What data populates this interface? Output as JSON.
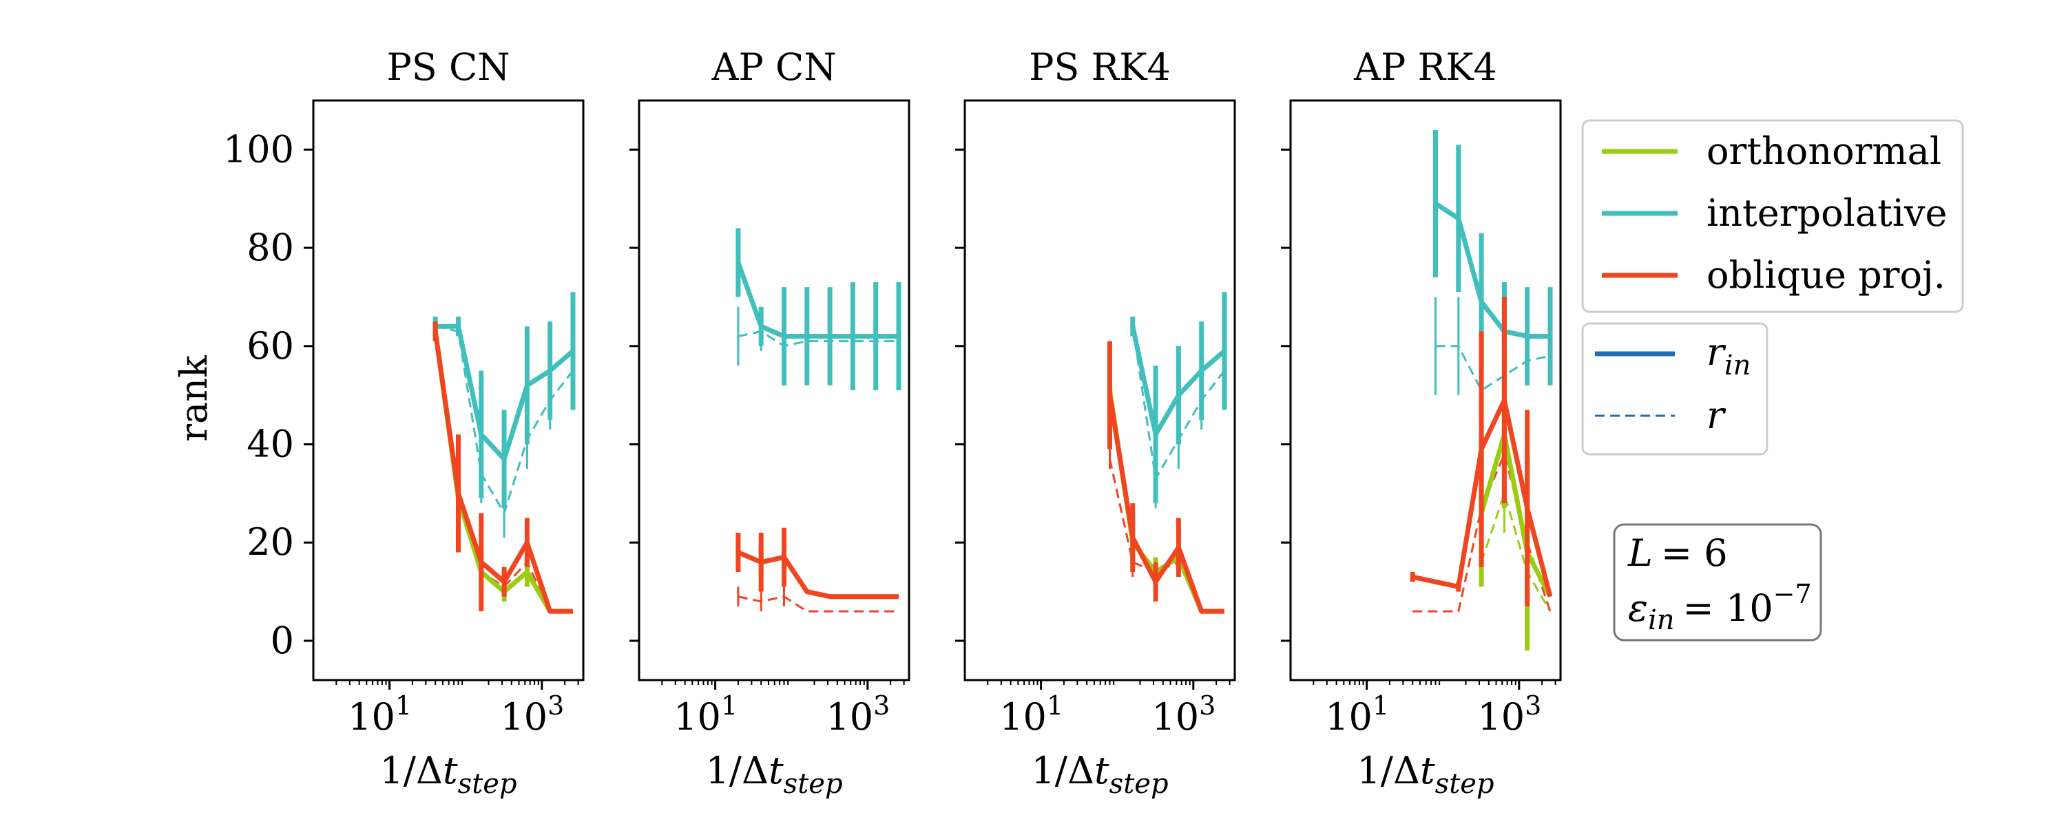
{
  "figure": {
    "ylabel": "rank",
    "legend_methods": [
      {
        "label": "orthonormal",
        "color": "#9acd12"
      },
      {
        "label": "interpolative",
        "color": "#40bfbc"
      },
      {
        "label": "oblique proj.",
        "color": "#f04520"
      }
    ],
    "legend_styles": [
      {
        "label": "r_in",
        "main": "r",
        "sub": "in",
        "style": "solid",
        "color": "#1f6fb0"
      },
      {
        "label": "r",
        "main": "r",
        "sub": "",
        "style": "dashed",
        "color": "#1f6fb0"
      }
    ],
    "params": {
      "L_line": "L = 6",
      "eps_line": "ε_in = 10^-7",
      "L_main": "L",
      "L_value": "= 6",
      "eps_main": "ε",
      "eps_sub": "in",
      "eps_eq": "= 10",
      "eps_exp": "−7"
    }
  },
  "chart_data": [
    {
      "type": "line",
      "title": "PS CN",
      "xlabel": "1/Δt_step",
      "ylabel": "rank",
      "xscale": "log",
      "xlim": [
        1,
        3500
      ],
      "ylim": [
        -8,
        110
      ],
      "yticks": [
        0,
        20,
        40,
        60,
        80,
        100
      ],
      "xticks": [
        {
          "value": 10,
          "base": "10",
          "exp": "1"
        },
        {
          "value": 1000,
          "base": "10",
          "exp": "3"
        }
      ],
      "series": [
        {
          "name": "interpolative",
          "kind": "r_in",
          "color": "#40bfbc",
          "x": [
            40,
            80,
            160,
            320,
            640,
            1280,
            2560
          ],
          "y": [
            64,
            64,
            42,
            37,
            52,
            55,
            59
          ],
          "err": [
            2,
            2,
            13,
            10,
            12,
            10,
            12
          ]
        },
        {
          "name": "interpolative",
          "kind": "r",
          "color": "#40bfbc",
          "x": [
            40,
            80,
            160,
            320,
            640,
            1280,
            2560
          ],
          "y": [
            64,
            63,
            34,
            26,
            41,
            49,
            55
          ],
          "err": [
            1,
            1,
            6,
            5,
            6,
            6,
            6
          ]
        },
        {
          "name": "orthonormal",
          "kind": "r_in",
          "color": "#9acd12",
          "x": [
            40,
            80,
            160,
            320,
            640,
            1280,
            2560
          ],
          "y": [
            63,
            29,
            14,
            10,
            14,
            6,
            6
          ],
          "err": [
            1,
            6,
            4,
            2,
            3,
            0,
            0
          ]
        },
        {
          "name": "oblique proj.",
          "kind": "r_in",
          "color": "#f04520",
          "x": [
            40,
            80,
            160,
            320,
            640,
            1280,
            2560
          ],
          "y": [
            63,
            30,
            16,
            12,
            20,
            6,
            6
          ],
          "err": [
            2,
            12,
            10,
            3,
            5,
            0,
            0
          ]
        },
        {
          "name": "oblique proj.",
          "kind": "r",
          "color": "#f04520",
          "x": [
            40,
            80,
            160,
            320,
            640,
            1280,
            2560
          ],
          "y": [
            63,
            28,
            14,
            11,
            16,
            6,
            6
          ],
          "err": [
            1,
            5,
            3,
            2,
            3,
            0,
            0
          ]
        }
      ]
    },
    {
      "type": "line",
      "title": "AP CN",
      "xlabel": "1/Δt_step",
      "ylabel": "rank",
      "xscale": "log",
      "xlim": [
        1,
        3500
      ],
      "ylim": [
        -8,
        110
      ],
      "yticks": [
        0,
        20,
        40,
        60,
        80,
        100
      ],
      "xticks": [
        {
          "value": 10,
          "base": "10",
          "exp": "1"
        },
        {
          "value": 1000,
          "base": "10",
          "exp": "3"
        }
      ],
      "series": [
        {
          "name": "interpolative",
          "kind": "r_in",
          "color": "#40bfbc",
          "x": [
            20,
            40,
            80,
            160,
            320,
            640,
            1280,
            2560
          ],
          "y": [
            77,
            64,
            62,
            62,
            62,
            62,
            62,
            62
          ],
          "err": [
            7,
            4,
            10,
            10,
            10,
            11,
            11,
            11
          ]
        },
        {
          "name": "interpolative",
          "kind": "r",
          "color": "#40bfbc",
          "x": [
            20,
            40,
            80,
            160,
            320,
            640,
            1280,
            2560
          ],
          "y": [
            62,
            63,
            60,
            61,
            61,
            61,
            61,
            61
          ],
          "err": [
            6,
            4,
            4,
            4,
            4,
            4,
            4,
            4
          ]
        },
        {
          "name": "orthonormal",
          "kind": "r_in",
          "color": "#9acd12",
          "x": [
            20,
            40,
            80,
            160,
            320,
            640,
            1280,
            2560
          ],
          "y": [
            18,
            16,
            17,
            10,
            9,
            9,
            9,
            9
          ],
          "err": [
            2,
            3,
            3,
            0,
            0,
            0,
            0,
            0
          ]
        },
        {
          "name": "oblique proj.",
          "kind": "r_in",
          "color": "#f04520",
          "x": [
            20,
            40,
            80,
            160,
            320,
            640,
            1280,
            2560
          ],
          "y": [
            18,
            16,
            17,
            10,
            9,
            9,
            9,
            9
          ],
          "err": [
            4,
            6,
            6,
            0,
            0,
            0,
            0,
            0
          ]
        },
        {
          "name": "oblique proj.",
          "kind": "r",
          "color": "#f04520",
          "x": [
            20,
            40,
            80,
            160,
            320,
            640,
            1280,
            2560
          ],
          "y": [
            9,
            8,
            9,
            6,
            6,
            6,
            6,
            6
          ],
          "err": [
            2,
            2,
            2,
            0,
            0,
            0,
            0,
            0
          ]
        }
      ]
    },
    {
      "type": "line",
      "title": "PS RK4",
      "xlabel": "1/Δt_step",
      "ylabel": "rank",
      "xscale": "log",
      "xlim": [
        1,
        3500
      ],
      "ylim": [
        -8,
        110
      ],
      "yticks": [
        0,
        20,
        40,
        60,
        80,
        100
      ],
      "xticks": [
        {
          "value": 10,
          "base": "10",
          "exp": "1"
        },
        {
          "value": 1000,
          "base": "10",
          "exp": "3"
        }
      ],
      "series": [
        {
          "name": "interpolative",
          "kind": "r_in",
          "color": "#40bfbc",
          "x": [
            160,
            320,
            640,
            1280,
            2560
          ],
          "y": [
            64,
            42,
            50,
            55,
            59
          ],
          "err": [
            2,
            14,
            10,
            10,
            12
          ]
        },
        {
          "name": "interpolative",
          "kind": "r",
          "color": "#40bfbc",
          "x": [
            160,
            320,
            640,
            1280,
            2560
          ],
          "y": [
            64,
            33,
            41,
            49,
            55
          ],
          "err": [
            1,
            6,
            6,
            6,
            6
          ]
        },
        {
          "name": "orthonormal",
          "kind": "r_in",
          "color": "#9acd12",
          "x": [
            80,
            160,
            320,
            640,
            1280,
            2560
          ],
          "y": [
            51,
            20,
            14,
            17,
            6,
            6
          ],
          "err": [
            10,
            5,
            3,
            3,
            0,
            0
          ]
        },
        {
          "name": "oblique proj.",
          "kind": "r_in",
          "color": "#f04520",
          "x": [
            80,
            160,
            320,
            640,
            1280,
            2560
          ],
          "y": [
            50,
            21,
            12,
            19,
            6,
            6
          ],
          "err": [
            11,
            7,
            4,
            6,
            0,
            0
          ]
        },
        {
          "name": "oblique proj.",
          "kind": "r",
          "color": "#f04520",
          "x": [
            80,
            160,
            320,
            640,
            1280,
            2560
          ],
          "y": [
            37,
            16,
            14,
            16,
            6,
            6
          ],
          "err": [
            2,
            3,
            2,
            2,
            0,
            0
          ]
        }
      ]
    },
    {
      "type": "line",
      "title": "AP RK4",
      "xlabel": "1/Δt_step",
      "ylabel": "rank",
      "xscale": "log",
      "xlim": [
        1,
        3500
      ],
      "ylim": [
        -8,
        110
      ],
      "yticks": [
        0,
        20,
        40,
        60,
        80,
        100
      ],
      "xticks": [
        {
          "value": 10,
          "base": "10",
          "exp": "1"
        },
        {
          "value": 1000,
          "base": "10",
          "exp": "3"
        }
      ],
      "series": [
        {
          "name": "interpolative",
          "kind": "r_in",
          "color": "#40bfbc",
          "x": [
            80,
            160,
            320,
            640,
            1280,
            2560
          ],
          "y": [
            89,
            86,
            69,
            63,
            62,
            62
          ],
          "err": [
            15,
            15,
            14,
            10,
            10,
            10
          ]
        },
        {
          "name": "interpolative",
          "kind": "r",
          "color": "#40bfbc",
          "x": [
            80,
            160,
            320,
            640,
            1280,
            2560
          ],
          "y": [
            60,
            60,
            51,
            54,
            57,
            58
          ],
          "err": [
            10,
            10,
            5,
            5,
            5,
            5
          ]
        },
        {
          "name": "orthonormal",
          "kind": "r_in",
          "color": "#9acd12",
          "x": [
            320,
            640,
            1280,
            2560
          ],
          "y": [
            26,
            42,
            18,
            9
          ],
          "err": [
            15,
            15,
            20,
            0
          ]
        },
        {
          "name": "orthonormal",
          "kind": "r",
          "color": "#9acd12",
          "x": [
            320,
            640,
            1280,
            2560
          ],
          "y": [
            16,
            30,
            14,
            6
          ],
          "err": [
            5,
            8,
            6,
            0
          ]
        },
        {
          "name": "oblique proj.",
          "kind": "r_in",
          "color": "#f04520",
          "x": [
            40,
            160,
            320,
            640,
            1280,
            2560
          ],
          "y": [
            13,
            11,
            39,
            49,
            27,
            9
          ],
          "err": [
            1,
            1,
            24,
            21,
            20,
            0
          ]
        },
        {
          "name": "oblique proj.",
          "kind": "r",
          "color": "#f04520",
          "x": [
            40,
            160,
            320,
            640,
            1280,
            2560
          ],
          "y": [
            6,
            6,
            27,
            38,
            20,
            6
          ],
          "err": [
            0,
            0,
            10,
            10,
            10,
            0
          ]
        }
      ]
    }
  ]
}
